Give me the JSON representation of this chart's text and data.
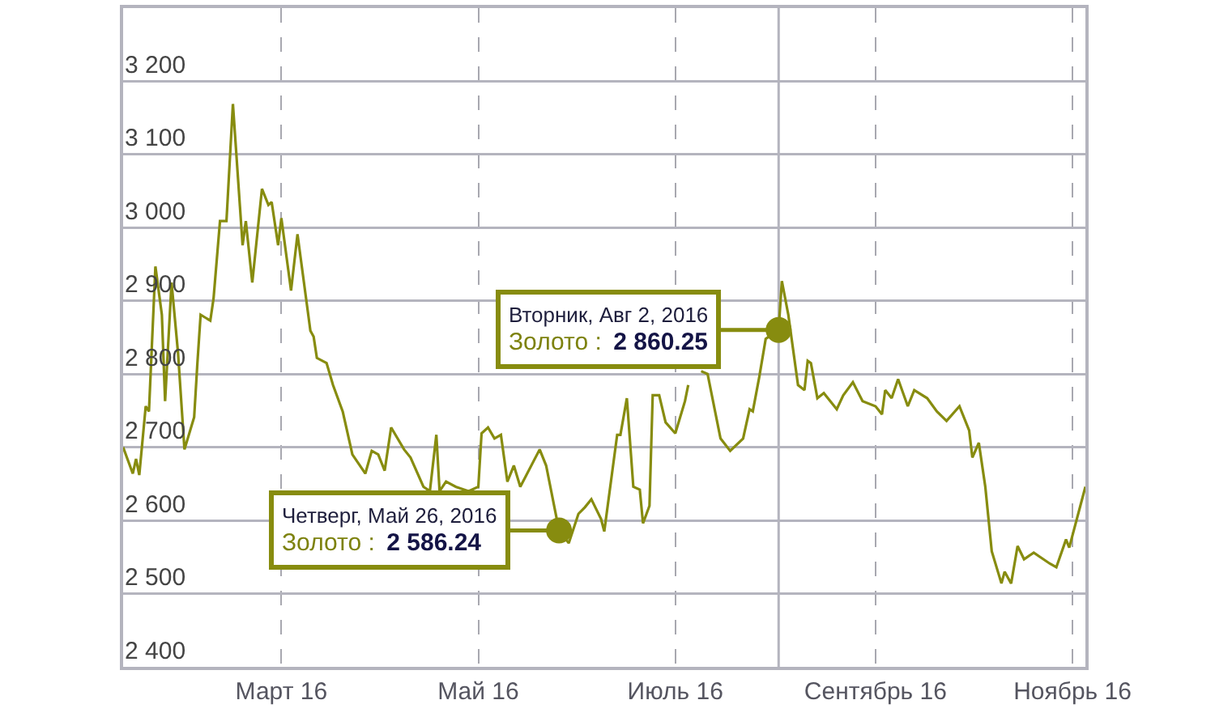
{
  "chart_data": {
    "type": "line",
    "x": [
      "2016-01-12",
      "2016-01-15",
      "2016-01-16",
      "2016-01-17",
      "2016-01-19",
      "2016-01-20",
      "2016-01-22",
      "2016-01-24",
      "2016-01-25",
      "2016-01-27",
      "2016-01-29",
      "2016-01-31",
      "2016-02-03",
      "2016-02-04",
      "2016-02-05",
      "2016-02-08",
      "2016-02-09",
      "2016-02-11",
      "2016-02-13",
      "2016-02-15",
      "2016-02-18",
      "2016-02-19",
      "2016-02-21",
      "2016-02-24",
      "2016-02-26",
      "2016-02-27",
      "2016-02-29",
      "2016-03-01",
      "2016-03-04",
      "2016-03-06",
      "2016-03-10",
      "2016-03-11",
      "2016-03-12",
      "2016-03-15",
      "2016-03-17",
      "2016-03-20",
      "2016-03-23",
      "2016-03-27",
      "2016-03-29",
      "2016-03-31",
      "2016-04-02",
      "2016-04-04",
      "2016-04-08",
      "2016-04-10",
      "2016-04-14",
      "2016-04-16",
      "2016-04-18",
      "2016-04-19",
      "2016-04-21",
      "2016-04-24",
      "2016-04-28",
      "2016-05-01",
      "2016-05-02",
      "2016-05-04",
      "2016-05-06",
      "2016-05-08",
      "2016-05-10",
      "2016-05-12",
      "2016-05-14",
      "2016-05-20",
      "2016-05-22",
      "2016-05-26",
      "2016-05-29",
      "2016-06-01",
      "2016-06-03",
      "2016-06-05",
      "2016-06-08",
      "2016-06-09",
      "2016-06-13",
      "2016-06-14",
      "2016-06-16",
      "2016-06-18",
      "2016-06-20",
      "2016-06-21",
      "2016-06-23",
      "2016-06-24",
      "2016-06-26",
      "2016-06-28",
      "2016-07-01",
      "2016-07-04",
      "2016-07-05",
      "2016-07-08",
      "2016-07-09",
      "2016-07-11",
      "2016-07-15",
      "2016-07-18",
      "2016-07-22",
      "2016-07-24",
      "2016-07-25",
      "2016-07-27",
      "2016-07-29",
      "2016-08-02",
      "2016-08-03",
      "2016-08-05",
      "2016-08-08",
      "2016-08-10",
      "2016-08-11",
      "2016-08-12",
      "2016-08-14",
      "2016-08-16",
      "2016-08-18",
      "2016-08-20",
      "2016-08-22",
      "2016-08-25",
      "2016-08-28",
      "2016-09-01",
      "2016-09-03",
      "2016-09-04",
      "2016-09-06",
      "2016-09-08",
      "2016-09-11",
      "2016-09-13",
      "2016-09-17",
      "2016-09-20",
      "2016-09-23",
      "2016-09-27",
      "2016-09-30",
      "2016-10-01",
      "2016-10-03",
      "2016-10-05",
      "2016-10-07",
      "2016-10-10",
      "2016-10-11",
      "2016-10-13",
      "2016-10-15",
      "2016-10-17",
      "2016-10-20",
      "2016-10-25",
      "2016-10-27",
      "2016-10-30",
      "2016-10-31",
      "2016-11-05"
    ],
    "series": [
      {
        "color": "#878c0f",
        "values": [
          2700,
          2664,
          2684,
          2662,
          2756,
          2749,
          2947,
          2881,
          2763,
          2925,
          2829,
          2697,
          2741,
          2815,
          2881,
          2873,
          2903,
          3009,
          3009,
          3169,
          2976,
          3009,
          2925,
          3053,
          3031,
          3035,
          2976,
          3013,
          2914,
          2991,
          2859,
          2851,
          2822,
          2815,
          2785,
          2749,
          2690,
          2664,
          2695,
          2690,
          2668,
          2727,
          2697,
          2686,
          2646,
          2640,
          2717,
          2640,
          2653,
          2646,
          2640,
          2646,
          2719,
          2727,
          2712,
          2717,
          2653,
          2675,
          2646,
          2697,
          2675,
          2586.24,
          2569,
          2609,
          2618,
          2629,
          2602,
          2585,
          2717,
          2717,
          2767,
          2646,
          2642,
          2596,
          2620,
          2771,
          2771,
          2734,
          2719,
          2763,
          2785,
          null,
          2804,
          2800,
          2712,
          2695,
          2712,
          2752,
          2749,
          2796,
          2848,
          2860.25,
          2927,
          2881,
          2785,
          2778,
          2818,
          2815,
          2767,
          2774,
          2763,
          2752,
          2771,
          2789,
          2763,
          2756,
          2745,
          2778,
          2767,
          2793,
          2756,
          2778,
          2767,
          2749,
          2736,
          2756,
          2723,
          2686,
          2706,
          2646,
          2558,
          2514,
          2530,
          2514,
          2565,
          2547,
          2556,
          2541,
          2536,
          2574,
          2563,
          2646
        ]
      }
    ],
    "xlim": [
      "2016-01-12",
      "2016-11-05"
    ],
    "xticks": [
      {
        "value": "2016-03-01",
        "label": "Март 16"
      },
      {
        "value": "2016-05-01",
        "label": "Май 16"
      },
      {
        "value": "2016-07-01",
        "label": "Июль 16"
      },
      {
        "value": "2016-09-01",
        "label": "Сентябрь 16"
      },
      {
        "value": "2016-11-01",
        "label": "Ноябрь 16"
      }
    ],
    "ylim": [
      2400,
      3300
    ],
    "yticks": [
      {
        "value": 2400,
        "label": "2 400"
      },
      {
        "value": 2500,
        "label": "2 500"
      },
      {
        "value": 2600,
        "label": "2 600"
      },
      {
        "value": 2700,
        "label": "2 700"
      },
      {
        "value": 2800,
        "label": "2 800"
      },
      {
        "value": 2900,
        "label": "2 900"
      },
      {
        "value": 3000,
        "label": "3 000"
      },
      {
        "value": 3100,
        "label": "3 100"
      },
      {
        "value": 3200,
        "label": "3 200"
      }
    ],
    "ref_lines": [
      {
        "axis": "x",
        "value": "2016-08-02",
        "label": null,
        "color": "#b4b4be",
        "line_style": "solid"
      }
    ],
    "annotations": [
      {
        "text": "Четверг, Май 26, 2016\nЗолото :  2 586.24",
        "x": "2016-05-26",
        "y": 2586.24
      },
      {
        "text": "Вторник, Авг 2, 2016\nЗолото :  2 860.25",
        "x": "2016-08-02",
        "y": 2860.25
      }
    ],
    "grid": true,
    "marker": "none",
    "line_style": "solid"
  }
}
